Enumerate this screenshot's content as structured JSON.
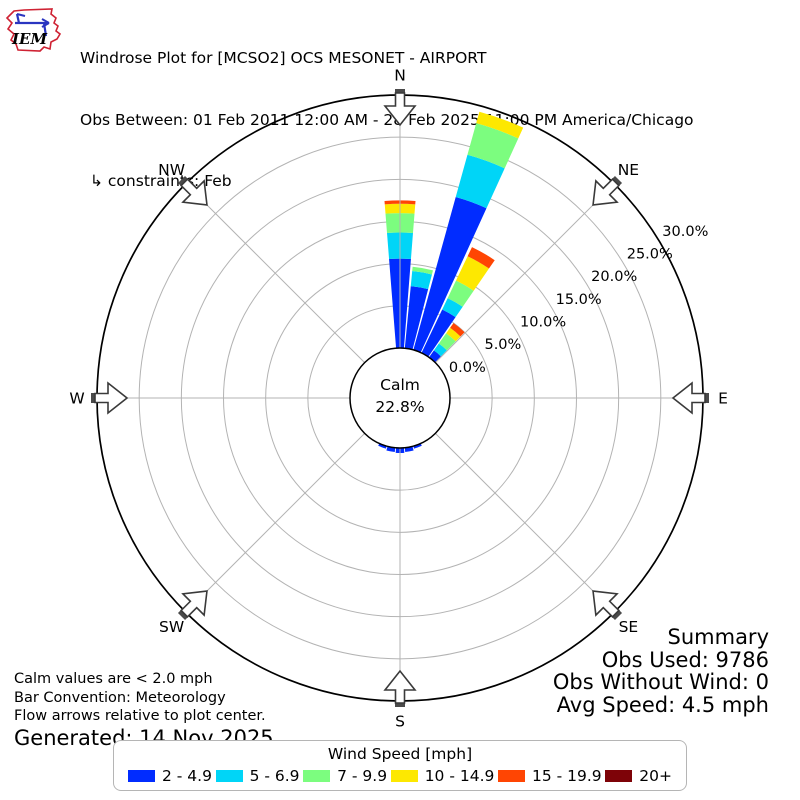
{
  "header": {
    "logo_text": "IEM",
    "title": "Windrose Plot for [MCSO2] OCS MESONET - AIRPORT",
    "subtitle": "Obs Between: 01 Feb 2011 12:00 AM - 28 Feb 2025 11:00 PM America/Chicago",
    "constraints": "↳ constraints: Feb"
  },
  "summary": {
    "title": "Summary",
    "obs_used": "Obs Used: 9786",
    "obs_without_wind": "Obs Without Wind: 0",
    "avg_speed": "Avg Speed: 4.5 mph"
  },
  "footnotes": {
    "calm_note": "Calm values are < 2.0 mph",
    "convention_note": "Bar Convention: Meteorology",
    "arrows_note": "Flow arrows relative to plot center.",
    "generated": "Generated: 14 Nov 2025"
  },
  "legend": {
    "title": "Wind Speed [mph]"
  },
  "chart_data": {
    "type": "windrose-polar-bar",
    "units": "percent of observations",
    "calm": {
      "label": "Calm",
      "value": "22.8%"
    },
    "compass_points": [
      {
        "label": "N",
        "deg": 0
      },
      {
        "label": "NE",
        "deg": 45
      },
      {
        "label": "E",
        "deg": 90
      },
      {
        "label": "SE",
        "deg": 135
      },
      {
        "label": "S",
        "deg": 180
      },
      {
        "label": "SW",
        "deg": 225
      },
      {
        "label": "W",
        "deg": 270
      },
      {
        "label": "NW",
        "deg": 315
      }
    ],
    "ring_ticks": [
      {
        "pct": 0,
        "label": "0.0%"
      },
      {
        "pct": 5,
        "label": "5.0%"
      },
      {
        "pct": 10,
        "label": "10.0%"
      },
      {
        "pct": 15,
        "label": "15.0%"
      },
      {
        "pct": 20,
        "label": "20.0%"
      },
      {
        "pct": 25,
        "label": "25.0%"
      },
      {
        "pct": 30,
        "label": "30.0%"
      }
    ],
    "ring_label_angle_deg": 57.5,
    "sector_width_deg": 10,
    "speed_bins": [
      {
        "label": "2 - 4.9",
        "color": "#012cff"
      },
      {
        "label": "5 - 6.9",
        "color": "#00d5f7"
      },
      {
        "label": "7 - 9.9",
        "color": "#7cfd7f"
      },
      {
        "label": "10 - 14.9",
        "color": "#fde801"
      },
      {
        "label": "15 - 19.9",
        "color": "#ff4503"
      },
      {
        "label": "20+",
        "color": "#7e0308"
      }
    ],
    "bars": [
      {
        "dir_deg": 0,
        "segments_pct": [
          10.6,
          3.1,
          2.3,
          1.1,
          0.4,
          0
        ]
      },
      {
        "dir_deg": 10,
        "segments_pct": [
          7.4,
          1.8,
          0.5,
          0,
          0,
          0
        ]
      },
      {
        "dir_deg": 20,
        "segments_pct": [
          18.8,
          5.2,
          3.9,
          1.4,
          0,
          0
        ]
      },
      {
        "dir_deg": 30,
        "segments_pct": [
          5.7,
          1.5,
          2.3,
          3.2,
          1.2,
          0
        ]
      },
      {
        "dir_deg": 40,
        "segments_pct": [
          1.0,
          1.0,
          1.5,
          0.8,
          0.7,
          0
        ]
      },
      {
        "dir_deg": 160,
        "segments_pct": [
          0.3,
          0,
          0,
          0,
          0,
          0
        ]
      },
      {
        "dir_deg": 170,
        "segments_pct": [
          0.5,
          0,
          0,
          0,
          0,
          0
        ]
      },
      {
        "dir_deg": 180,
        "segments_pct": [
          0.6,
          0,
          0,
          0,
          0,
          0
        ]
      },
      {
        "dir_deg": 190,
        "segments_pct": [
          0.5,
          0,
          0,
          0,
          0,
          0
        ]
      },
      {
        "dir_deg": 200,
        "segments_pct": [
          0.3,
          0,
          0,
          0,
          0,
          0
        ]
      }
    ]
  }
}
